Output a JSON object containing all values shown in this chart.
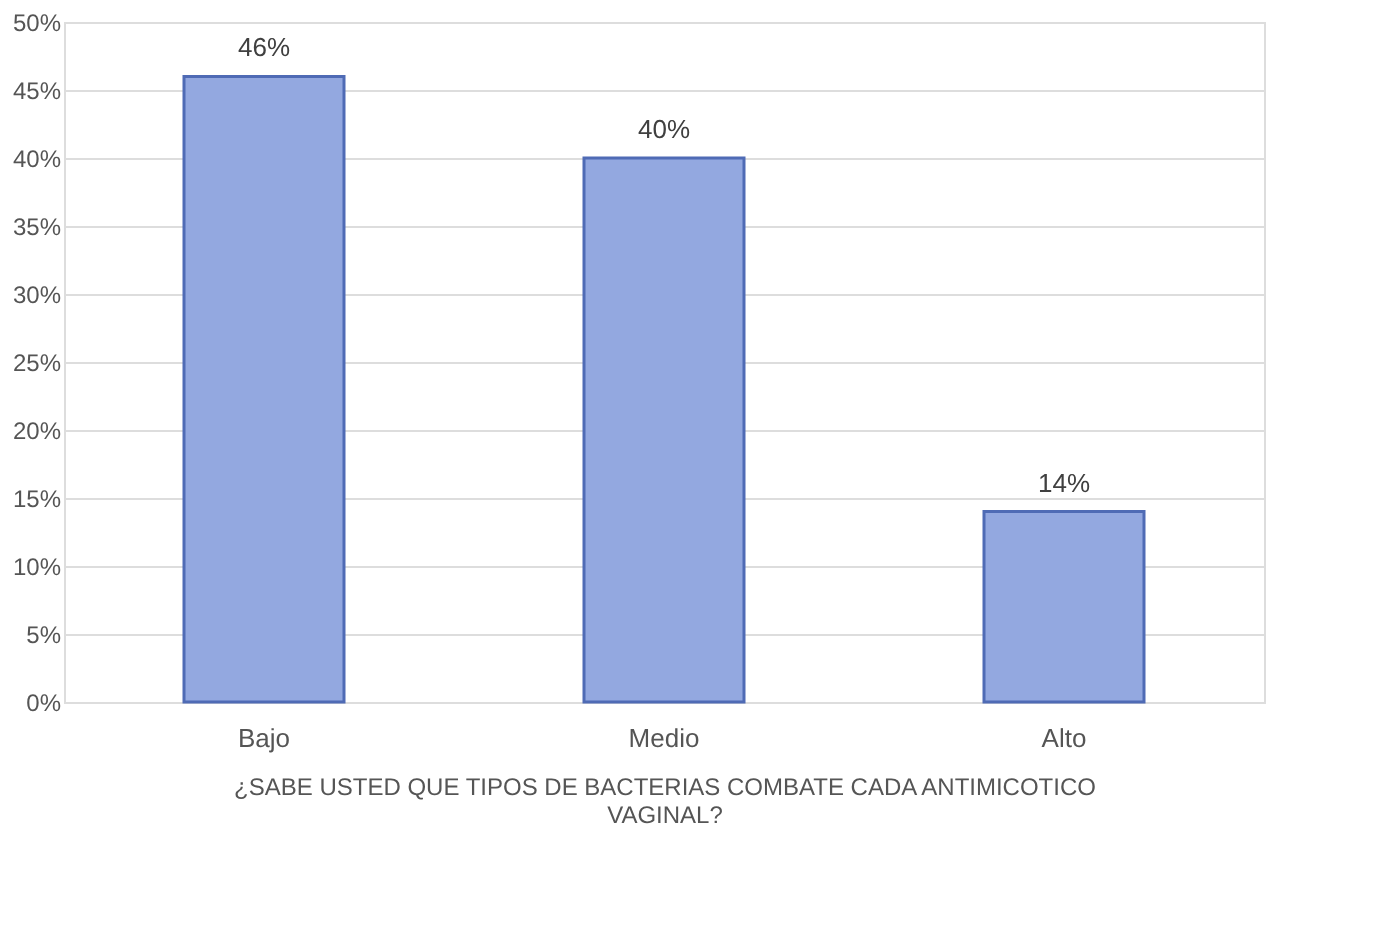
{
  "chart_data": {
    "type": "bar",
    "xlabel": "¿SABE USTED QUE TIPOS DE BACTERIAS COMBATE CADA ANTIMICOTICO VAGINAL?",
    "categories": [
      "Bajo",
      "Medio",
      "Alto"
    ],
    "values": [
      46,
      40,
      14
    ],
    "value_labels": [
      "46%",
      "40%",
      "14%"
    ],
    "color": "#93a8e0",
    "ylim": [
      0,
      50
    ],
    "yticks": [
      {
        "value": 0,
        "label": "0%"
      },
      {
        "value": 5,
        "label": "5%"
      },
      {
        "value": 10,
        "label": "10%"
      },
      {
        "value": 15,
        "label": "15%"
      },
      {
        "value": 20,
        "label": "20%"
      },
      {
        "value": 25,
        "label": "25%"
      },
      {
        "value": 30,
        "label": "30%"
      },
      {
        "value": 35,
        "label": "35%"
      },
      {
        "value": 40,
        "label": "40%"
      },
      {
        "value": 45,
        "label": "45%"
      },
      {
        "value": 50,
        "label": "50%"
      }
    ],
    "grid": "y"
  }
}
